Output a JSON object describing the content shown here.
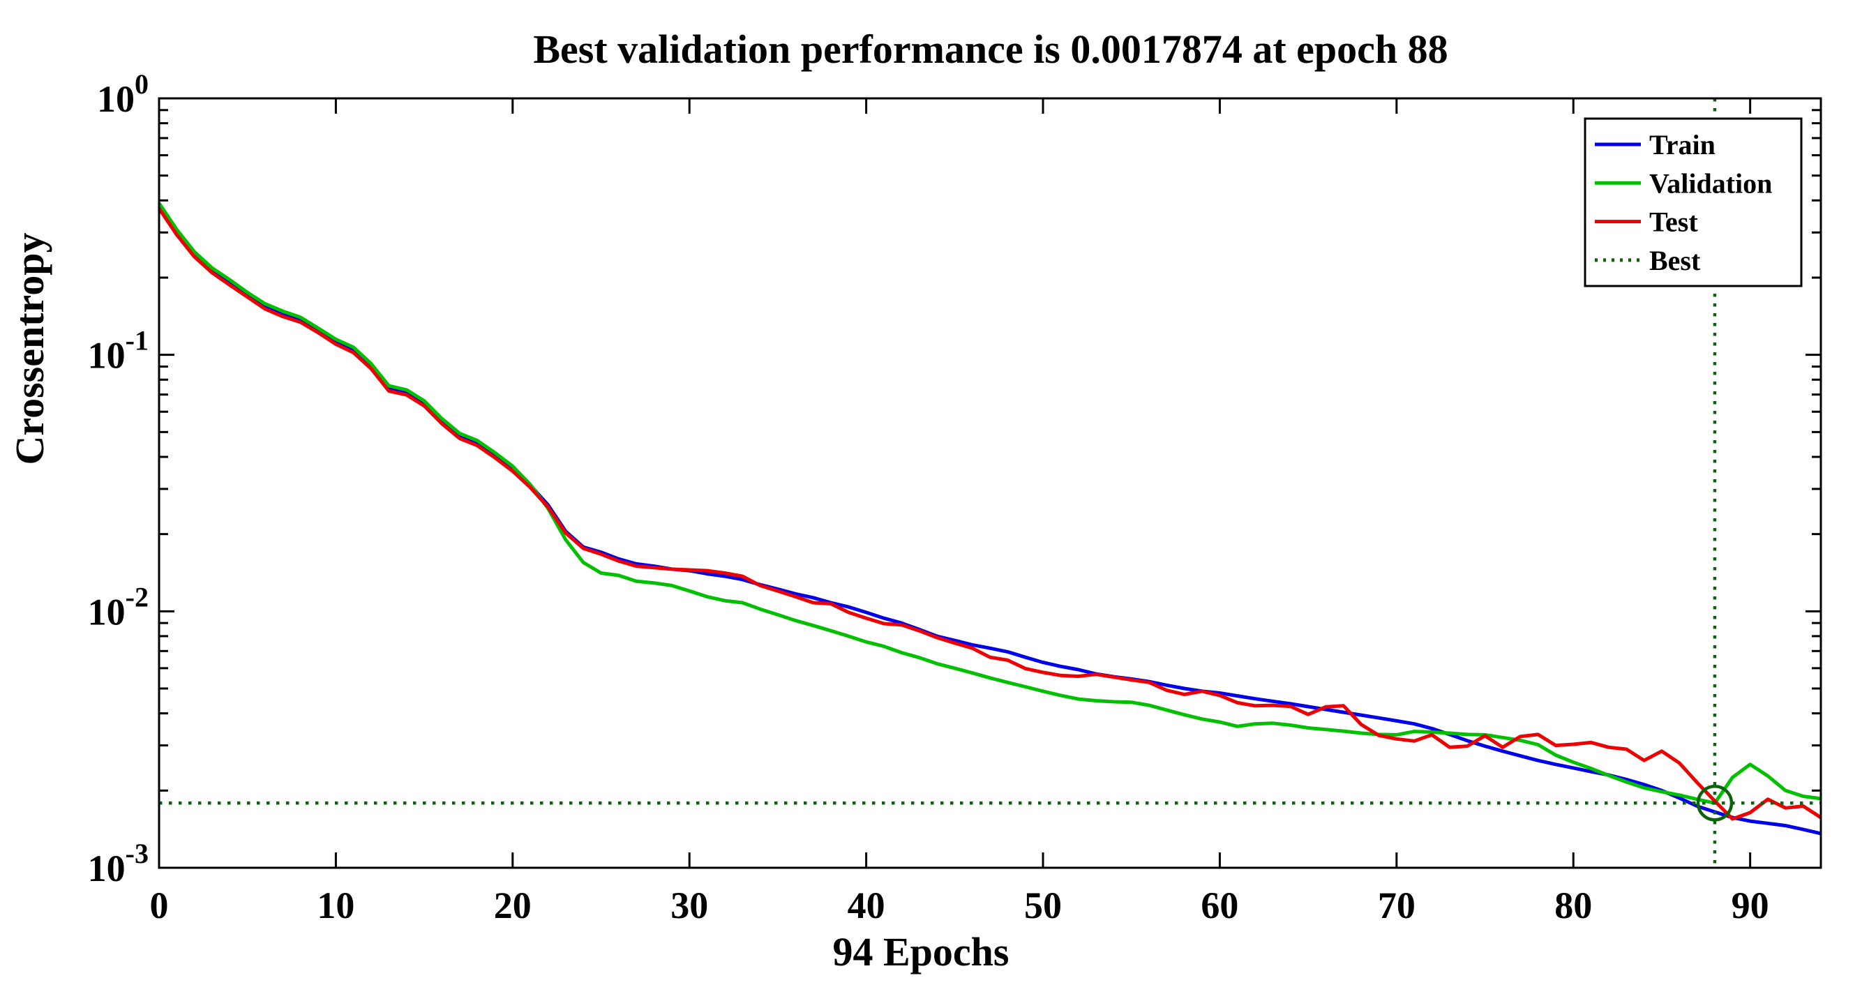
{
  "chart_data": {
    "type": "line",
    "title": "Best validation performance is 0.0017874 at epoch 88",
    "xlabel": "94 Epochs",
    "ylabel": "Crossentropy",
    "x_axis": {
      "min": 0,
      "max": 94,
      "ticks": [
        0,
        10,
        20,
        30,
        40,
        50,
        60,
        70,
        80,
        90
      ]
    },
    "y_axis": {
      "scale": "log",
      "min": 0.001,
      "max": 1,
      "tick_exponents": [
        0,
        -1,
        -2,
        -3
      ]
    },
    "grid": "off",
    "legend_position": "top-right",
    "x": [
      0,
      1,
      2,
      3,
      4,
      5,
      6,
      7,
      8,
      9,
      10,
      11,
      12,
      13,
      14,
      15,
      16,
      17,
      18,
      19,
      20,
      21,
      22,
      23,
      24,
      25,
      26,
      27,
      28,
      29,
      30,
      31,
      32,
      33,
      34,
      35,
      36,
      37,
      38,
      39,
      40,
      41,
      42,
      43,
      44,
      45,
      46,
      47,
      48,
      49,
      50,
      51,
      52,
      53,
      54,
      55,
      56,
      57,
      58,
      59,
      60,
      61,
      62,
      63,
      64,
      65,
      66,
      67,
      68,
      69,
      70,
      71,
      72,
      73,
      74,
      75,
      76,
      77,
      78,
      79,
      80,
      81,
      82,
      83,
      84,
      85,
      86,
      87,
      88,
      89,
      90,
      91,
      92,
      93,
      94
    ],
    "series": [
      {
        "name": "Train",
        "color": "#0000EE",
        "style": "solid",
        "values": [
          0.38,
          0.3,
          0.246,
          0.213,
          0.191,
          0.171,
          0.154,
          0.144,
          0.137,
          0.124,
          0.112,
          0.104,
          0.09,
          0.0738,
          0.0712,
          0.0645,
          0.055,
          0.0482,
          0.0452,
          0.0405,
          0.036,
          0.031,
          0.026,
          0.0205,
          0.0178,
          0.017,
          0.016,
          0.0153,
          0.015,
          0.0146,
          0.0144,
          0.014,
          0.0137,
          0.0133,
          0.0127,
          0.0122,
          0.0117,
          0.0113,
          0.0108,
          0.0104,
          0.0099,
          0.0094,
          0.009,
          0.0085,
          0.008,
          0.0077,
          0.0074,
          0.00718,
          0.00695,
          0.00662,
          0.00632,
          0.0061,
          0.00592,
          0.0057,
          0.00556,
          0.00545,
          0.00532,
          0.00515,
          0.005,
          0.00488,
          0.0048,
          0.00468,
          0.00456,
          0.00446,
          0.00436,
          0.00425,
          0.00414,
          0.00404,
          0.00394,
          0.00384,
          0.00374,
          0.00364,
          0.00349,
          0.00331,
          0.00313,
          0.00298,
          0.00285,
          0.00273,
          0.00262,
          0.00253,
          0.00245,
          0.00237,
          0.0023,
          0.00221,
          0.00211,
          0.002,
          0.00187,
          0.00174,
          0.00165,
          0.00157,
          0.00152,
          0.00149,
          0.00146,
          0.00141,
          0.00136
        ]
      },
      {
        "name": "Validation",
        "color": "#00C000",
        "style": "solid",
        "values": [
          0.39,
          0.308,
          0.252,
          0.218,
          0.196,
          0.175,
          0.158,
          0.148,
          0.14,
          0.127,
          0.115,
          0.107,
          0.0923,
          0.0757,
          0.073,
          0.0661,
          0.0564,
          0.0494,
          0.0463,
          0.0415,
          0.0368,
          0.0312,
          0.0252,
          0.019,
          0.0155,
          0.0141,
          0.0138,
          0.0131,
          0.0129,
          0.0126,
          0.012,
          0.0114,
          0.011,
          0.0108,
          0.0102,
          0.0097,
          0.0092,
          0.0088,
          0.0084,
          0.008,
          0.0076,
          0.0073,
          0.0069,
          0.0066,
          0.00625,
          0.006,
          0.00575,
          0.0055,
          0.00528,
          0.00508,
          0.00488,
          0.0047,
          0.00455,
          0.00448,
          0.00444,
          0.00442,
          0.0043,
          0.00412,
          0.00395,
          0.0038,
          0.0037,
          0.00356,
          0.00364,
          0.00366,
          0.0036,
          0.00351,
          0.00346,
          0.00341,
          0.00335,
          0.00331,
          0.0033,
          0.0034,
          0.00338,
          0.00335,
          0.00331,
          0.0033,
          0.00322,
          0.00314,
          0.00302,
          0.00275,
          0.00258,
          0.00244,
          0.00229,
          0.00216,
          0.00205,
          0.00198,
          0.00192,
          0.00185,
          0.0017874,
          0.00225,
          0.00253,
          0.00228,
          0.002,
          0.0019,
          0.00186
        ]
      },
      {
        "name": "Test",
        "color": "#EE0000",
        "style": "solid",
        "values": [
          0.372,
          0.294,
          0.241,
          0.209,
          0.187,
          0.168,
          0.151,
          0.141,
          0.134,
          0.122,
          0.11,
          0.102,
          0.0882,
          0.0723,
          0.0698,
          0.0632,
          0.0539,
          0.0472,
          0.0443,
          0.0397,
          0.0352,
          0.0304,
          0.0255,
          0.0202,
          0.0176,
          0.0167,
          0.0157,
          0.015,
          0.0148,
          0.0146,
          0.0145,
          0.0144,
          0.0141,
          0.0137,
          0.0126,
          0.012,
          0.0114,
          0.0108,
          0.0107,
          0.0099,
          0.0094,
          0.00895,
          0.00885,
          0.0084,
          0.0079,
          0.00752,
          0.00718,
          0.00662,
          0.00645,
          0.00598,
          0.00578,
          0.00562,
          0.00558,
          0.00568,
          0.00554,
          0.0054,
          0.00528,
          0.00492,
          0.00474,
          0.00488,
          0.0047,
          0.0044,
          0.00428,
          0.0043,
          0.00426,
          0.00396,
          0.00424,
          0.00428,
          0.00362,
          0.00328,
          0.00318,
          0.00312,
          0.0033,
          0.00295,
          0.00298,
          0.00327,
          0.00295,
          0.00325,
          0.00331,
          0.003,
          0.00303,
          0.00308,
          0.00295,
          0.0029,
          0.00262,
          0.00285,
          0.00256,
          0.00215,
          0.00182,
          0.00155,
          0.00164,
          0.00185,
          0.00171,
          0.00174,
          0.00157
        ]
      }
    ],
    "best": {
      "label": "Best",
      "epoch": 88,
      "value": 0.0017874,
      "color": "#0A640A",
      "style": "dotted",
      "marker": "circle"
    }
  },
  "legend": {
    "items": [
      {
        "label": "Train",
        "color": "#0000EE",
        "style": "solid"
      },
      {
        "label": "Validation",
        "color": "#00C000",
        "style": "solid"
      },
      {
        "label": "Test",
        "color": "#EE0000",
        "style": "solid"
      },
      {
        "label": "Best",
        "color": "#0A640A",
        "style": "dotted"
      }
    ]
  },
  "frame": {
    "color": "#000000",
    "background": "#FFFFFF"
  }
}
